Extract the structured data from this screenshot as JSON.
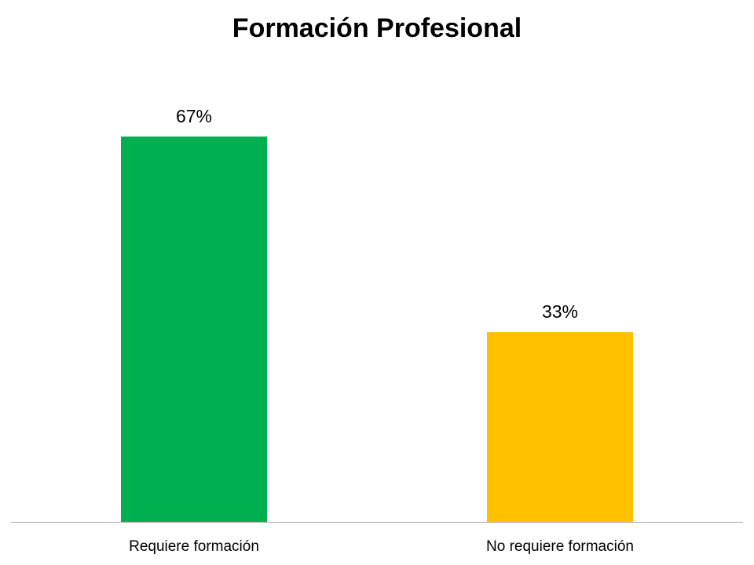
{
  "chart_data": {
    "type": "bar",
    "title": "Formación Profesional",
    "categories": [
      "Requiere formación",
      "No requiere formación"
    ],
    "values": [
      67,
      33
    ],
    "value_labels": [
      "67%",
      "33%"
    ],
    "colors": [
      "#00b050",
      "#ffc000"
    ]
  }
}
